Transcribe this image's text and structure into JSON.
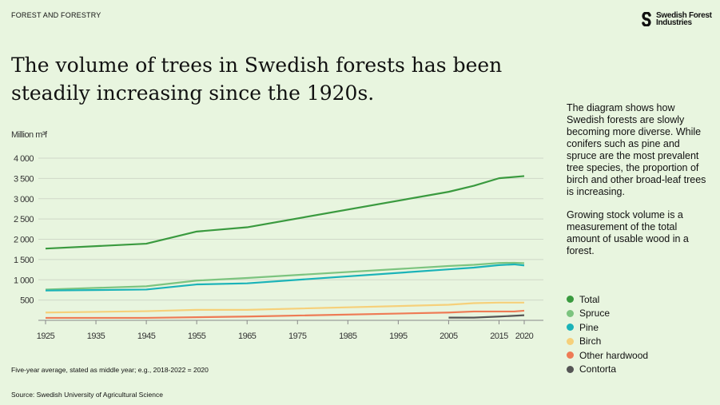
{
  "header": {
    "category": "FOREST AND FORESTRY",
    "logo_text": [
      "Swedish Forest",
      "Industries"
    ]
  },
  "title": "The volume of trees in Swedish forests has been steadily increasing since the 1920s.",
  "description": [
    "The diagram shows how Swedish forests are slowly becoming more diverse. While conifers such as pine and spruce are the most prevalent tree species, the proportion of birch and other broad-leaf trees is increasing.",
    "Growing stock volume is a measurement of the total amount of usable wood in a forest."
  ],
  "footnote": "Five-year average, stated as middle year; e.g., 2018-2022 = 2020",
  "source": "Source: Swedish University of Agricultural Science",
  "chart_data": {
    "type": "line",
    "ylabel": "Million m³f",
    "ylim": [
      0,
      4000
    ],
    "yticks": [
      500,
      1000,
      1500,
      2000,
      2500,
      3000,
      3500,
      4000
    ],
    "ytick_labels": [
      "500",
      "1 000",
      "1 500",
      "2 000",
      "2 500",
      "3 000",
      "3 500",
      "4 000"
    ],
    "xticks": [
      1925,
      1935,
      1945,
      1955,
      1965,
      1975,
      1985,
      1995,
      2005,
      2015,
      2020
    ],
    "xlim": [
      1925,
      2020
    ],
    "grid": true,
    "legend": "right",
    "series": [
      {
        "name": "Total",
        "color": "#3a9a3f",
        "x": [
          1925,
          1945,
          1955,
          1965,
          2005,
          2010,
          2015,
          2020
        ],
        "values": [
          1770,
          1890,
          2190,
          2295,
          3170,
          3320,
          3505,
          3558
        ]
      },
      {
        "name": "Spruce",
        "color": "#7cc47f",
        "x": [
          1925,
          1945,
          1955,
          1965,
          2005,
          2010,
          2015,
          2018,
          2020
        ],
        "values": [
          760,
          840,
          980,
          1045,
          1340,
          1370,
          1415,
          1420,
          1410
        ]
      },
      {
        "name": "Pine",
        "color": "#1ab3b8",
        "x": [
          1925,
          1945,
          1955,
          1965,
          2005,
          2010,
          2015,
          2018,
          2020
        ],
        "values": [
          735,
          760,
          886,
          913,
          1257,
          1300,
          1362,
          1380,
          1355
        ]
      },
      {
        "name": "Birch",
        "color": "#f6d07a",
        "x": [
          1925,
          1945,
          1955,
          1965,
          2005,
          2010,
          2015,
          2020
        ],
        "values": [
          192,
          225,
          258,
          258,
          384,
          423,
          437,
          437
        ]
      },
      {
        "name": "Other hardwood",
        "color": "#ee7b55",
        "x": [
          1925,
          1945,
          1965,
          2005,
          2010,
          2015,
          2018,
          2020
        ],
        "values": [
          60,
          60,
          93,
          192,
          218,
          218,
          218,
          238
        ]
      },
      {
        "name": "Contorta",
        "color": "#555555",
        "x": [
          2005,
          2010,
          2015,
          2020
        ],
        "values": [
          66,
          66,
          93,
          126
        ]
      }
    ]
  }
}
